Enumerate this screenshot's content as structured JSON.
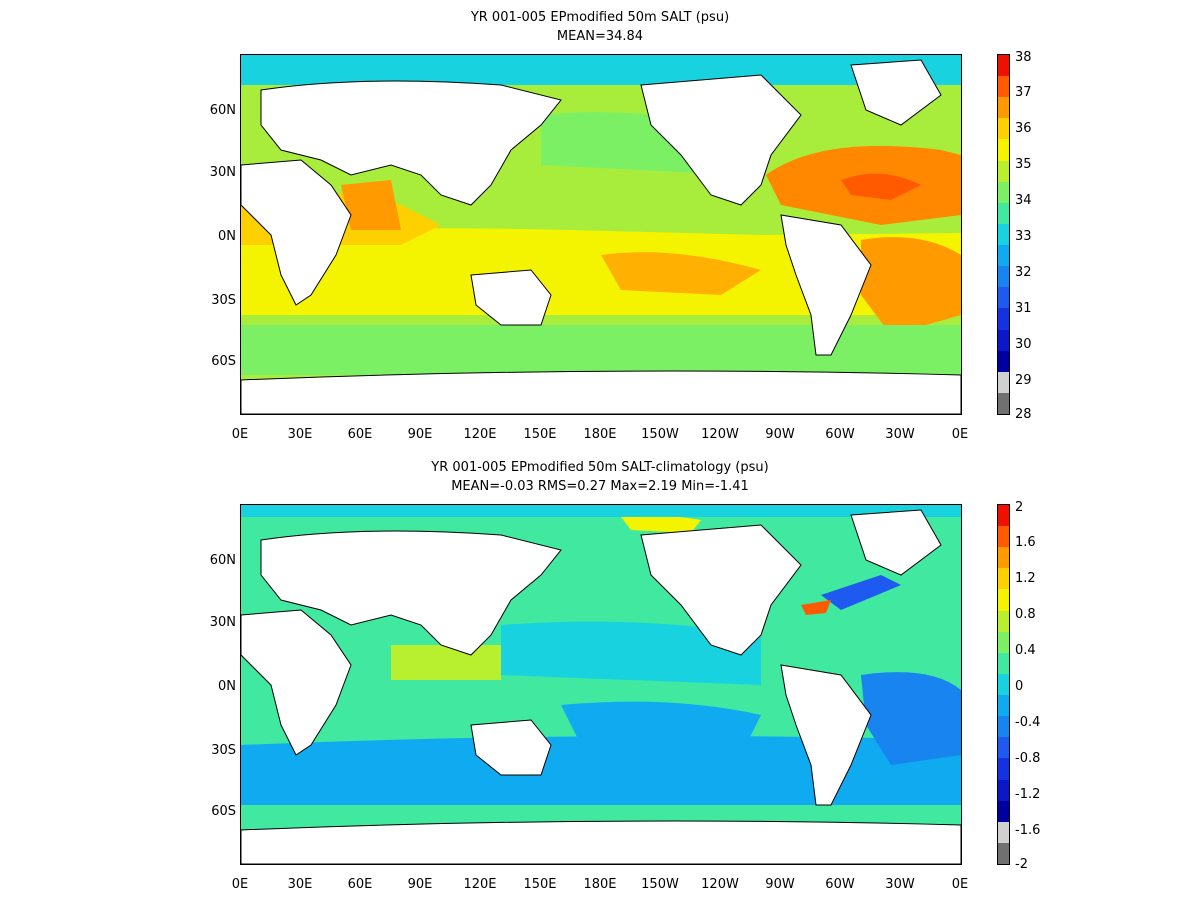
{
  "panels": [
    {
      "title_line1": "YR 001-005 EPmodified 50m SALT (psu)",
      "title_line2": "MEAN=34.84",
      "lat_labels": [
        "60N",
        "30N",
        "0N",
        "30S",
        "60S"
      ],
      "lon_labels": [
        "0E",
        "30E",
        "60E",
        "90E",
        "120E",
        "150E",
        "180E",
        "150W",
        "120W",
        "90W",
        "60W",
        "30W",
        "0E"
      ],
      "colorbar_labels": [
        "38",
        "37",
        "36",
        "35",
        "34",
        "33",
        "32",
        "31",
        "30",
        "29",
        "28"
      ],
      "colorbar_colors": [
        "#f01000",
        "#ff5a00",
        "#ff9a00",
        "#ffd000",
        "#f4f400",
        "#b8f030",
        "#7cf064",
        "#40e8a0",
        "#18d2e0",
        "#10aaf0",
        "#1884f0",
        "#1e5af0",
        "#1632e0",
        "#0c18c8",
        "#0000a0",
        "#d0d0d0",
        "#707070"
      ],
      "ocean_color": "#a8ec3c",
      "regions": [
        {
          "name": "north-atlantic-subtropical-high",
          "color": "#ff8800"
        },
        {
          "name": "south-atlantic-subtropical-high",
          "color": "#ff9a00"
        },
        {
          "name": "arabian-sea",
          "color": "#ff9a00"
        },
        {
          "name": "south-pacific-high",
          "color": "#ffb000"
        },
        {
          "name": "indian-ocean-band",
          "color": "#f4f400"
        },
        {
          "name": "north-pacific-lowsalt",
          "color": "#7cf064"
        },
        {
          "name": "arctic-fresh",
          "color": "#18d2e0"
        },
        {
          "name": "southern-ocean",
          "color": "#7cf064"
        }
      ]
    },
    {
      "title_line1": "YR 001-005 EPmodified 50m SALT-climatology (psu)",
      "title_line2": "MEAN=-0.03   RMS=0.27   Max=2.19   Min=-1.41",
      "lat_labels": [
        "60N",
        "30N",
        "0N",
        "30S",
        "60S"
      ],
      "lon_labels": [
        "0E",
        "30E",
        "60E",
        "90E",
        "120E",
        "150E",
        "180E",
        "150W",
        "120W",
        "90W",
        "60W",
        "30W",
        "0E"
      ],
      "colorbar_labels": [
        "2",
        "1.6",
        "1.2",
        "0.8",
        "0.4",
        "0",
        "-0.4",
        "-0.8",
        "-1.2",
        "-1.6",
        "-2"
      ],
      "colorbar_colors": [
        "#f01000",
        "#ff5a00",
        "#ff9a00",
        "#ffd000",
        "#f4f400",
        "#b8f030",
        "#7cf064",
        "#40e8a0",
        "#18d2e0",
        "#10aaf0",
        "#1884f0",
        "#1e5af0",
        "#1632e0",
        "#0c18c8",
        "#0000a0",
        "#d0d0d0",
        "#707070"
      ],
      "ocean_color": "#40e8a0",
      "regions": [
        {
          "name": "gulf-stream-negative",
          "color": "#1e5af0"
        },
        {
          "name": "south-atlantic-negative",
          "color": "#1884f0"
        },
        {
          "name": "pacific-negative",
          "color": "#10aaf0"
        },
        {
          "name": "southern-ocean-negative",
          "color": "#10aaf0"
        },
        {
          "name": "indian-positive",
          "color": "#b8f030"
        },
        {
          "name": "arctic-positive",
          "color": "#f4f400"
        }
      ]
    }
  ]
}
